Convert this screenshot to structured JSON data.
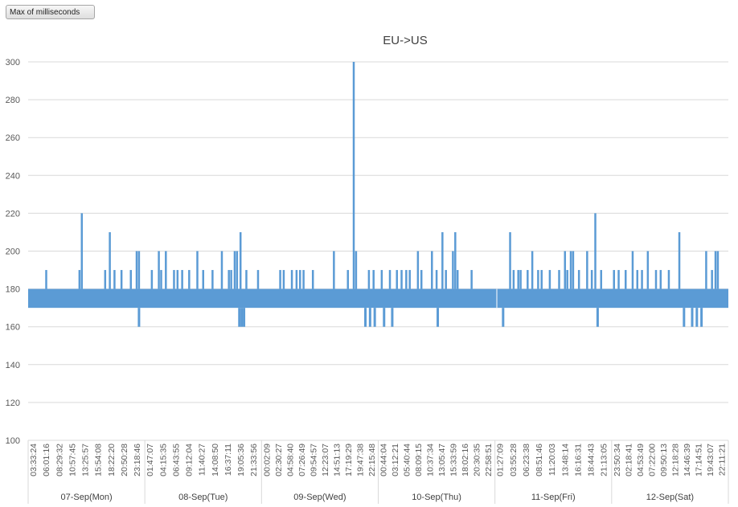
{
  "field_button": {
    "label": "Max of milliseconds"
  },
  "chart_data": {
    "type": "line",
    "title": "EU->US",
    "xlabel": "",
    "ylabel": "",
    "ylim": [
      100,
      300
    ],
    "yticks": [
      100,
      120,
      140,
      160,
      180,
      200,
      220,
      240,
      260,
      280,
      300
    ],
    "grid": "horizontal",
    "legend": "none",
    "series_color": "#5b9bd5",
    "baseline_band": [
      170,
      180
    ],
    "days": [
      {
        "label": "07-Sep(Mon)",
        "times": [
          "03:33:24",
          "06:01:16",
          "08:29:32",
          "10:57:45",
          "13:25:57",
          "15:54:08",
          "18:22:20",
          "20:50:28",
          "23:18:46"
        ],
        "spikes": [
          {
            "x": 0.155,
            "value": 190
          },
          {
            "x": 0.44,
            "value": 190
          },
          {
            "x": 0.46,
            "value": 220
          },
          {
            "x": 0.66,
            "value": 190
          },
          {
            "x": 0.7,
            "value": 210
          },
          {
            "x": 0.74,
            "value": 190
          },
          {
            "x": 0.8,
            "value": 190
          },
          {
            "x": 0.88,
            "value": 190
          },
          {
            "x": 0.93,
            "value": 200
          }
        ],
        "dips": []
      },
      {
        "label": "08-Sep(Tue)",
        "times": [
          "01:47:07",
          "04:15:35",
          "06:43:55",
          "09:12:04",
          "11:40:27",
          "14:08:50",
          "16:37:11",
          "19:05:36",
          "21:33:56"
        ],
        "spikes": [
          {
            "x": -0.05,
            "value": 200
          },
          {
            "x": 0.06,
            "value": 190
          },
          {
            "x": 0.12,
            "value": 200
          },
          {
            "x": 0.14,
            "value": 190
          },
          {
            "x": 0.18,
            "value": 200
          },
          {
            "x": 0.25,
            "value": 190
          },
          {
            "x": 0.28,
            "value": 190
          },
          {
            "x": 0.32,
            "value": 190
          },
          {
            "x": 0.38,
            "value": 190
          },
          {
            "x": 0.45,
            "value": 200
          },
          {
            "x": 0.5,
            "value": 190
          },
          {
            "x": 0.58,
            "value": 190
          },
          {
            "x": 0.66,
            "value": 200
          },
          {
            "x": 0.72,
            "value": 190
          },
          {
            "x": 0.74,
            "value": 190
          },
          {
            "x": 0.77,
            "value": 200
          },
          {
            "x": 0.79,
            "value": 200
          },
          {
            "x": 0.82,
            "value": 210
          },
          {
            "x": 0.87,
            "value": 190
          },
          {
            "x": 0.97,
            "value": 190
          }
        ],
        "dips": [
          {
            "x": -0.05,
            "value": 160
          },
          {
            "x": 0.81,
            "value": 160
          },
          {
            "x": 0.83,
            "value": 160
          },
          {
            "x": 0.85,
            "value": 160
          }
        ]
      },
      {
        "label": "09-Sep(Wed)",
        "times": [
          "00:02:09",
          "02:30:27",
          "04:58:40",
          "07:26:49",
          "09:54:57",
          "12:23:07",
          "14:51:13",
          "17:19:29",
          "19:47:38",
          "22:15:48"
        ],
        "spikes": [
          {
            "x": 0.16,
            "value": 190
          },
          {
            "x": 0.19,
            "value": 190
          },
          {
            "x": 0.26,
            "value": 190
          },
          {
            "x": 0.3,
            "value": 190
          },
          {
            "x": 0.33,
            "value": 190
          },
          {
            "x": 0.36,
            "value": 190
          },
          {
            "x": 0.44,
            "value": 190
          },
          {
            "x": 0.62,
            "value": 200
          },
          {
            "x": 0.74,
            "value": 190
          },
          {
            "x": 0.79,
            "value": 300
          },
          {
            "x": 0.81,
            "value": 200
          },
          {
            "x": 0.92,
            "value": 190
          },
          {
            "x": 0.96,
            "value": 190
          }
        ],
        "dips": [
          {
            "x": 0.89,
            "value": 160
          },
          {
            "x": 0.93,
            "value": 160
          },
          {
            "x": 0.97,
            "value": 160
          }
        ]
      },
      {
        "label": "10-Sep(Thu)",
        "times": [
          "00:44:04",
          "03:12:21",
          "05:40:44",
          "08:09:15",
          "10:37:34",
          "13:05:47",
          "15:33:59",
          "18:02:16",
          "20:30:35",
          "22:58:51"
        ],
        "spikes": [
          {
            "x": 0.03,
            "value": 190
          },
          {
            "x": 0.1,
            "value": 190
          },
          {
            "x": 0.16,
            "value": 190
          },
          {
            "x": 0.2,
            "value": 190
          },
          {
            "x": 0.24,
            "value": 190
          },
          {
            "x": 0.27,
            "value": 190
          },
          {
            "x": 0.34,
            "value": 200
          },
          {
            "x": 0.37,
            "value": 190
          },
          {
            "x": 0.46,
            "value": 200
          },
          {
            "x": 0.5,
            "value": 190
          },
          {
            "x": 0.55,
            "value": 210
          },
          {
            "x": 0.58,
            "value": 190
          },
          {
            "x": 0.64,
            "value": 200
          },
          {
            "x": 0.66,
            "value": 210
          },
          {
            "x": 0.68,
            "value": 190
          },
          {
            "x": 0.8,
            "value": 190
          }
        ],
        "dips": [
          {
            "x": 0.05,
            "value": 160
          },
          {
            "x": 0.12,
            "value": 160
          },
          {
            "x": 0.51,
            "value": 160
          }
        ]
      },
      {
        "label": "11-Sep(Fri)",
        "times": [
          "01:27:09",
          "03:55:28",
          "06:23:38",
          "08:51:46",
          "11:20:03",
          "13:48:14",
          "16:16:31",
          "18:44:43",
          "21:13:05"
        ],
        "spikes": [
          {
            "x": 0.13,
            "value": 210
          },
          {
            "x": 0.16,
            "value": 190
          },
          {
            "x": 0.2,
            "value": 190
          },
          {
            "x": 0.22,
            "value": 190
          },
          {
            "x": 0.28,
            "value": 190
          },
          {
            "x": 0.32,
            "value": 200
          },
          {
            "x": 0.37,
            "value": 190
          },
          {
            "x": 0.4,
            "value": 190
          },
          {
            "x": 0.47,
            "value": 190
          },
          {
            "x": 0.55,
            "value": 190
          },
          {
            "x": 0.6,
            "value": 200
          },
          {
            "x": 0.62,
            "value": 190
          },
          {
            "x": 0.65,
            "value": 200
          },
          {
            "x": 0.67,
            "value": 200
          },
          {
            "x": 0.72,
            "value": 190
          },
          {
            "x": 0.79,
            "value": 200
          },
          {
            "x": 0.83,
            "value": 190
          },
          {
            "x": 0.86,
            "value": 220
          },
          {
            "x": 0.91,
            "value": 190
          }
        ],
        "dips": [
          {
            "x": 0.07,
            "value": 160
          },
          {
            "x": 0.88,
            "value": 160
          }
        ]
      },
      {
        "label": "12-Sep(Sat)",
        "times": [
          "23:50:34",
          "02:18:41",
          "04:53:49",
          "07:22:00",
          "09:50:13",
          "12:18:28",
          "14:46:39",
          "17:14:51",
          "19:43:07",
          "22:11:21"
        ],
        "spikes": [
          {
            "x": 0.02,
            "value": 190
          },
          {
            "x": 0.06,
            "value": 190
          },
          {
            "x": 0.12,
            "value": 190
          },
          {
            "x": 0.18,
            "value": 200
          },
          {
            "x": 0.22,
            "value": 190
          },
          {
            "x": 0.26,
            "value": 190
          },
          {
            "x": 0.31,
            "value": 200
          },
          {
            "x": 0.38,
            "value": 190
          },
          {
            "x": 0.42,
            "value": 190
          },
          {
            "x": 0.49,
            "value": 190
          },
          {
            "x": 0.58,
            "value": 210
          },
          {
            "x": 0.81,
            "value": 200
          },
          {
            "x": 0.86,
            "value": 190
          },
          {
            "x": 0.89,
            "value": 200
          },
          {
            "x": 0.91,
            "value": 200
          }
        ],
        "dips": [
          {
            "x": 0.62,
            "value": 160
          },
          {
            "x": 0.69,
            "value": 160
          },
          {
            "x": 0.73,
            "value": 160
          },
          {
            "x": 0.77,
            "value": 160
          }
        ]
      }
    ]
  }
}
